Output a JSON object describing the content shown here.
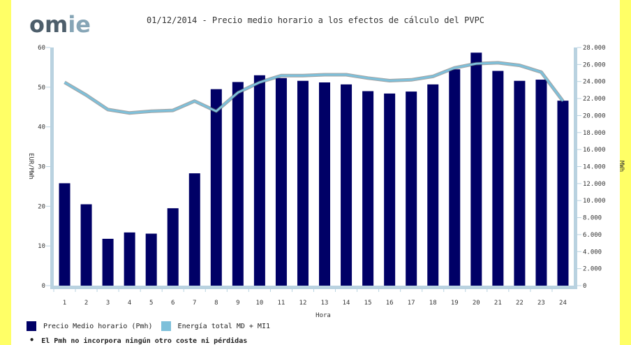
{
  "title": "01/12/2014 - Precio medio horario a los efectos de cálculo del PVPC",
  "logo": {
    "text": "omie",
    "colors": {
      "dark": "#4d5e6b",
      "light": "#86a5b6"
    }
  },
  "footnote": "El Pmh no incorpora ningún otro coste ni pérdidas",
  "chart_data": {
    "type": "bar",
    "xlabel": "Hora",
    "ylabel": "EUR/MWh",
    "y2label": "MWh",
    "ylim": [
      0,
      60
    ],
    "y2lim": [
      0,
      28000
    ],
    "yticks": [
      "0",
      "10",
      "20",
      "30",
      "40",
      "50",
      "60"
    ],
    "y2ticks": [
      "0",
      "2.000",
      "4.000",
      "6.000",
      "8.000",
      "10.000",
      "12.000",
      "14.000",
      "16.000",
      "18.000",
      "20.000",
      "22.000",
      "24.000",
      "26.000",
      "28.000"
    ],
    "categories": [
      "1",
      "2",
      "3",
      "4",
      "5",
      "6",
      "7",
      "8",
      "9",
      "10",
      "11",
      "12",
      "13",
      "14",
      "15",
      "16",
      "17",
      "18",
      "19",
      "20",
      "21",
      "22",
      "23",
      "24"
    ],
    "series": [
      {
        "name": "Precio Medio horario (Pmh)",
        "type": "bar",
        "color": "#000066",
        "axis": "left",
        "values": [
          25.8,
          20.5,
          11.8,
          13.4,
          13.1,
          19.5,
          28.3,
          49.5,
          51.3,
          53.0,
          52.3,
          51.6,
          51.2,
          50.7,
          49.0,
          48.4,
          48.9,
          50.7,
          54.5,
          58.7,
          54.1,
          51.6,
          51.9,
          46.6
        ]
      },
      {
        "name": "Energía total MD + MI1",
        "type": "line",
        "color": "#7ec0da",
        "axis": "right",
        "values": [
          23900,
          22400,
          20700,
          20300,
          20500,
          20600,
          21700,
          20500,
          22700,
          23900,
          24700,
          24700,
          24800,
          24800,
          24400,
          24100,
          24200,
          24600,
          25600,
          26100,
          26200,
          25900,
          25100,
          21700
        ]
      }
    ],
    "legend_position": "bottom-left",
    "grid": false
  }
}
